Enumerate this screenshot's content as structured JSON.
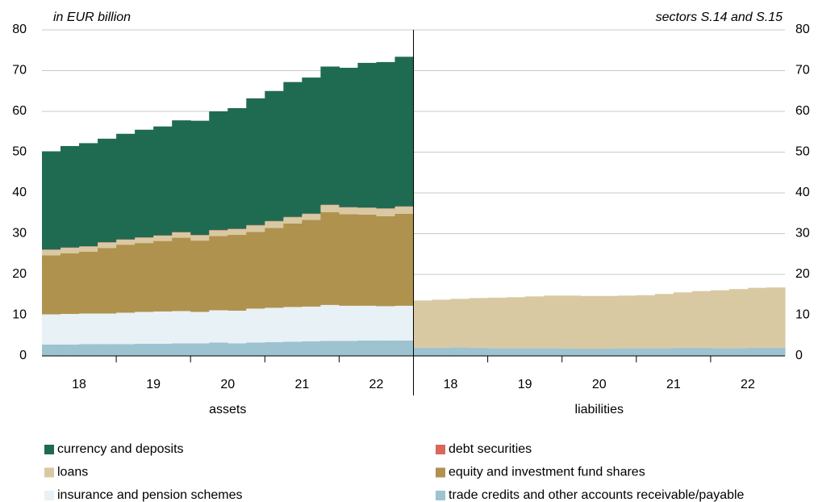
{
  "chart_data": {
    "type": "stacked-step-area",
    "annotations": [
      "in EUR billion",
      "sectors S.14 and S.15"
    ],
    "panels": [
      "assets",
      "liabilities"
    ],
    "x_labels": [
      "18",
      "19",
      "20",
      "21",
      "22"
    ],
    "ylim": [
      0,
      80
    ],
    "yticks": [
      0,
      10,
      20,
      30,
      40,
      50,
      60,
      70,
      80
    ],
    "grid": true,
    "series": [
      {
        "name": "currency and deposits",
        "color": "#1f6b52",
        "values": [
          [
            24.1,
            24.9,
            25.3,
            25.4,
            25.9,
            26.4,
            26.7,
            27.4,
            28.0,
            29.1,
            29.6,
            31.1,
            31.9,
            33.1,
            33.4,
            33.9,
            34.2,
            35.5,
            35.9,
            36.7
          ],
          [
            0,
            0,
            0,
            0,
            0,
            0,
            0,
            0,
            0,
            0,
            0,
            0,
            0,
            0,
            0,
            0,
            0,
            0,
            0,
            0
          ]
        ]
      },
      {
        "name": "debt securities",
        "color": "#d9675a",
        "values": [
          [
            0.1,
            0.1,
            0.1,
            0.1,
            0.1,
            0.1,
            0.1,
            0.1,
            0.1,
            0.1,
            0.1,
            0.1,
            0.1,
            0.1,
            0.1,
            0.1,
            0.1,
            0.1,
            0.1,
            0.1
          ],
          [
            0,
            0,
            0,
            0,
            0,
            0,
            0,
            0,
            0,
            0,
            0,
            0,
            0,
            0,
            0,
            0,
            0,
            0,
            0,
            0
          ]
        ]
      },
      {
        "name": "loans",
        "color": "#d9c9a3",
        "values": [
          [
            1.3,
            1.3,
            1.2,
            1.3,
            1.2,
            1.3,
            1.3,
            1.3,
            1.3,
            1.4,
            1.4,
            1.6,
            1.6,
            1.5,
            1.4,
            1.7,
            1.6,
            1.6,
            1.8,
            1.7
          ],
          [
            11.6,
            11.8,
            11.9,
            12.2,
            12.4,
            12.5,
            12.7,
            12.9,
            13.0,
            12.9,
            12.9,
            12.9,
            13.0,
            13.3,
            13.6,
            13.9,
            14.2,
            14.5,
            14.7,
            14.8
          ]
        ]
      },
      {
        "name": "equity and investment fund shares",
        "color": "#b0924f",
        "values": [
          [
            14.5,
            14.9,
            15.2,
            16.1,
            16.7,
            16.9,
            17.3,
            18.0,
            17.5,
            18.2,
            18.6,
            18.8,
            19.6,
            20.5,
            21.3,
            22.8,
            22.5,
            22.4,
            22.1,
            22.6
          ],
          [
            0,
            0,
            0,
            0,
            0,
            0,
            0,
            0,
            0,
            0,
            0,
            0,
            0,
            0,
            0,
            0,
            0,
            0,
            0,
            0
          ]
        ]
      },
      {
        "name": "insurance and pension schemes",
        "color": "#e8f1f5",
        "values": [
          [
            7.4,
            7.5,
            7.5,
            7.5,
            7.7,
            7.8,
            7.9,
            7.9,
            7.7,
            7.9,
            8.0,
            8.3,
            8.4,
            8.5,
            8.5,
            8.8,
            8.6,
            8.5,
            8.4,
            8.5
          ],
          [
            0,
            0,
            0,
            0,
            0,
            0,
            0,
            0,
            0,
            0,
            0,
            0,
            0,
            0,
            0,
            0,
            0,
            0,
            0,
            0
          ]
        ]
      },
      {
        "name": "trade credits and other accounts receivable/payable",
        "color": "#9dc3d0",
        "values": [
          [
            2.8,
            2.8,
            2.9,
            2.9,
            2.9,
            3.0,
            3.0,
            3.1,
            3.1,
            3.3,
            3.1,
            3.3,
            3.4,
            3.5,
            3.6,
            3.7,
            3.7,
            3.8,
            3.8,
            3.8
          ],
          [
            2.0,
            2.0,
            2.1,
            2.0,
            1.9,
            1.9,
            1.9,
            1.9,
            1.8,
            1.8,
            1.8,
            1.9,
            1.9,
            1.9,
            2.0,
            2.0,
            1.9,
            1.9,
            2.0,
            2.0
          ]
        ]
      }
    ]
  }
}
